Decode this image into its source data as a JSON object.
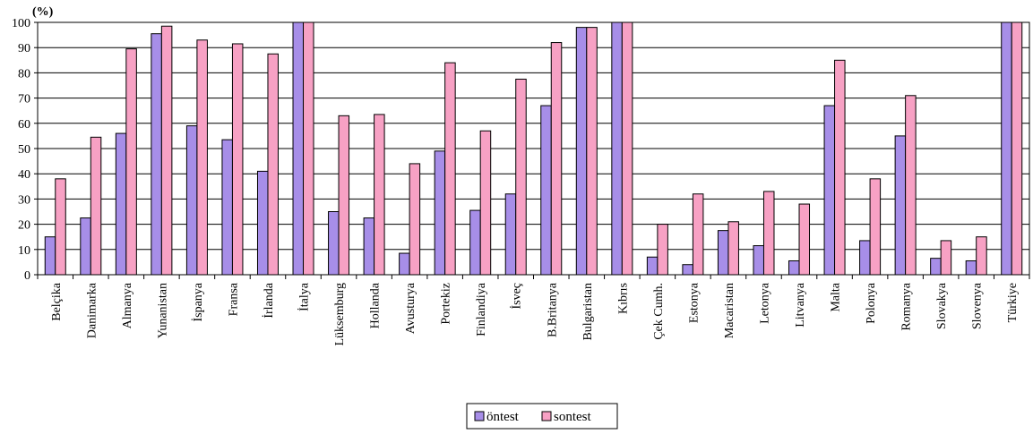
{
  "chart_data": {
    "type": "bar",
    "ylabel": "(%)",
    "ylim": [
      0,
      100
    ],
    "yticks": [
      0,
      10,
      20,
      30,
      40,
      50,
      60,
      70,
      80,
      90,
      100
    ],
    "grid": true,
    "legend_position": "bottom-center",
    "categories": [
      "Belçika",
      "Danimarka",
      "Almanya",
      "Yunanistan",
      "İspanya",
      "Fransa",
      "İrlanda",
      "İtalya",
      "Lüksemburg",
      "Hollanda",
      "Avusturya",
      "Portekiz",
      "Finlandiya",
      "İsveç",
      "B.Britanya",
      "Bulgaristan",
      "Kıbrıs",
      "Çek Cumh.",
      "Estonya",
      "Macaristan",
      "Letonya",
      "Litvanya",
      "Malta",
      "Polonya",
      "Romanya",
      "Slovakya",
      "Slovenya",
      "Türkiye"
    ],
    "series": [
      {
        "name": "öntest",
        "color": "#a78ee8",
        "values": [
          15,
          22.5,
          56,
          95.5,
          59,
          53.5,
          41,
          100,
          25,
          22.5,
          8.5,
          49,
          25.5,
          32,
          67,
          98,
          100,
          7,
          4,
          17.5,
          11.5,
          5.5,
          67,
          13.5,
          55,
          6.5,
          5.5,
          100
        ]
      },
      {
        "name": "sontest",
        "color": "#f7a1c4",
        "values": [
          38,
          54.5,
          89.5,
          98.5,
          93,
          91.5,
          87.5,
          100,
          63,
          63.5,
          44,
          84,
          57,
          77.5,
          92,
          98,
          100,
          20,
          32,
          21,
          33,
          28,
          85,
          38,
          71,
          13.5,
          15,
          100
        ]
      }
    ]
  }
}
